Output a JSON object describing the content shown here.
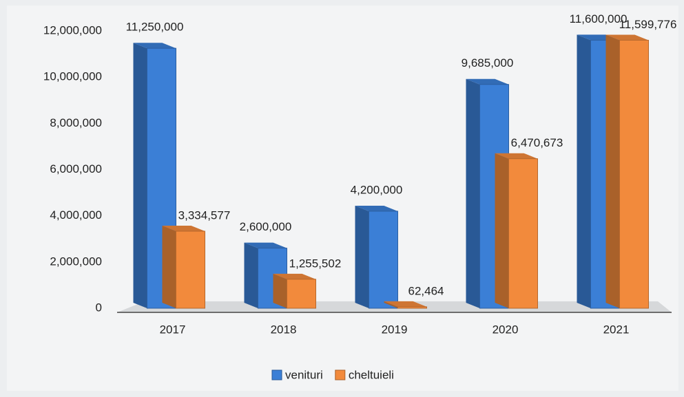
{
  "chart_data": {
    "type": "bar",
    "categories": [
      "2017",
      "2018",
      "2019",
      "2020",
      "2021"
    ],
    "series": [
      {
        "name": "venituri",
        "color": "#3b7fd6",
        "values": [
          11250000,
          2600000,
          4200000,
          9685000,
          11600000
        ],
        "value_labels": [
          "11,250,000",
          "2,600,000",
          "4,200,000",
          "9,685,000",
          "11,600,000"
        ]
      },
      {
        "name": "cheltuieli",
        "color": "#f28a3c",
        "values": [
          3334577,
          1255502,
          62464,
          6470673,
          11599776
        ],
        "value_labels": [
          "3,334,577",
          "1,255,502",
          "62,464",
          "6,470,673",
          "11,599,776"
        ]
      }
    ],
    "ylim": [
      0,
      12000000
    ],
    "yticks": [
      0,
      {
        "value": 2000000,
        "label": "2,000,000"
      },
      {
        "value": 4000000,
        "label": "4,000,000"
      },
      {
        "value": 6000000,
        "label": "6,000,000"
      },
      {
        "value": 8000000,
        "label": "8,000,000"
      },
      {
        "value": 10000000,
        "label": "10,000,000"
      },
      {
        "value": 12000000,
        "label": "12,000,000"
      }
    ],
    "grid": false,
    "legend": "bottom"
  }
}
